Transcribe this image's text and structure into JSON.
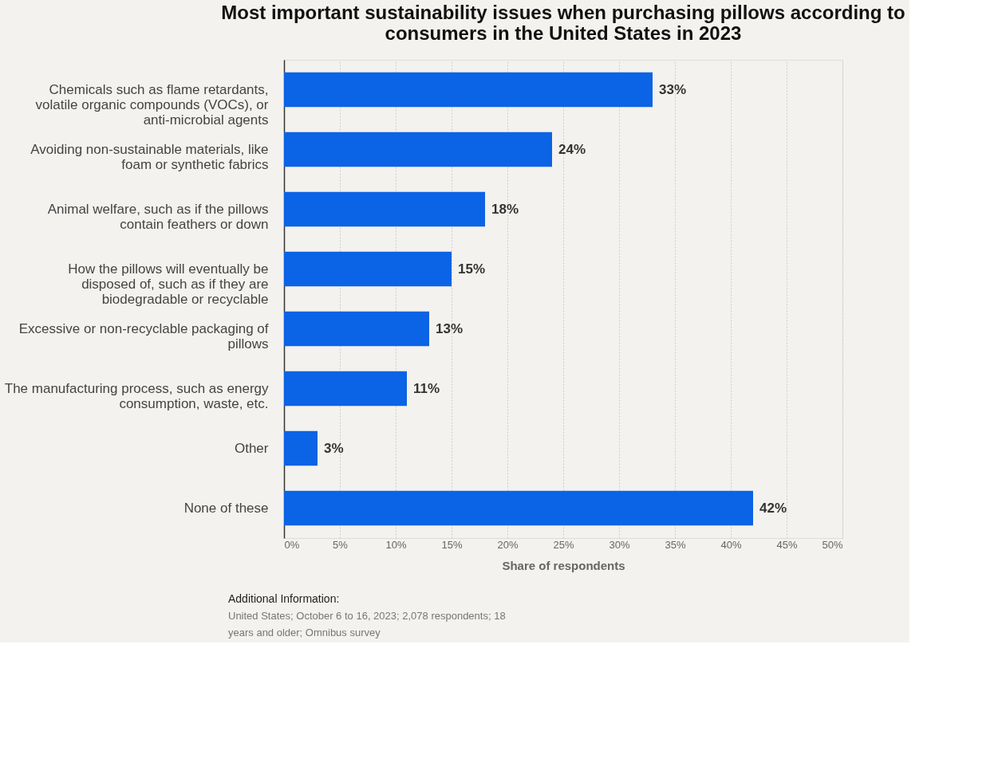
{
  "chart_data": {
    "type": "bar",
    "orientation": "horizontal",
    "title": "Most important sustainability issues when purchasing pillows according to consumers in the United States in 2023",
    "categories": [
      "Chemicals such as flame retardants, volatile organic compounds (VOCs), or anti-microbial agents",
      "Avoiding non-sustainable materials, like foam or synthetic fabrics",
      "Animal welfare, such as if the pillows contain feathers or down",
      "How the pillows will eventually be disposed of, such as if they are biodegradable or recyclable",
      "Excessive or non-recyclable packaging of pillows",
      "The manufacturing process, such as energy consumption, waste, etc.",
      "Other",
      "None of these"
    ],
    "values": [
      33,
      24,
      18,
      15,
      13,
      11,
      3,
      42
    ],
    "value_labels": [
      "33%",
      "24%",
      "18%",
      "15%",
      "13%",
      "11%",
      "3%",
      "42%"
    ],
    "color": "#0b63e5",
    "xlabel": "Share of respondents",
    "xlim": [
      0,
      50
    ],
    "xticks": [
      {
        "value": 0,
        "label": "0%"
      },
      {
        "value": 5,
        "label": "5%"
      },
      {
        "value": 10,
        "label": "10%"
      },
      {
        "value": 15,
        "label": "15%"
      },
      {
        "value": 20,
        "label": "20%"
      },
      {
        "value": 25,
        "label": "25%"
      },
      {
        "value": 30,
        "label": "30%"
      },
      {
        "value": 35,
        "label": "35%"
      },
      {
        "value": 40,
        "label": "40%"
      },
      {
        "value": 45,
        "label": "45%"
      },
      {
        "value": 50,
        "label": "50%"
      }
    ],
    "grid": "x",
    "annotations": [
      "Additional Information:",
      "United States; October 6 to 16, 2023; 2,078 respondents; 18 years and older; Omnibus survey"
    ]
  }
}
